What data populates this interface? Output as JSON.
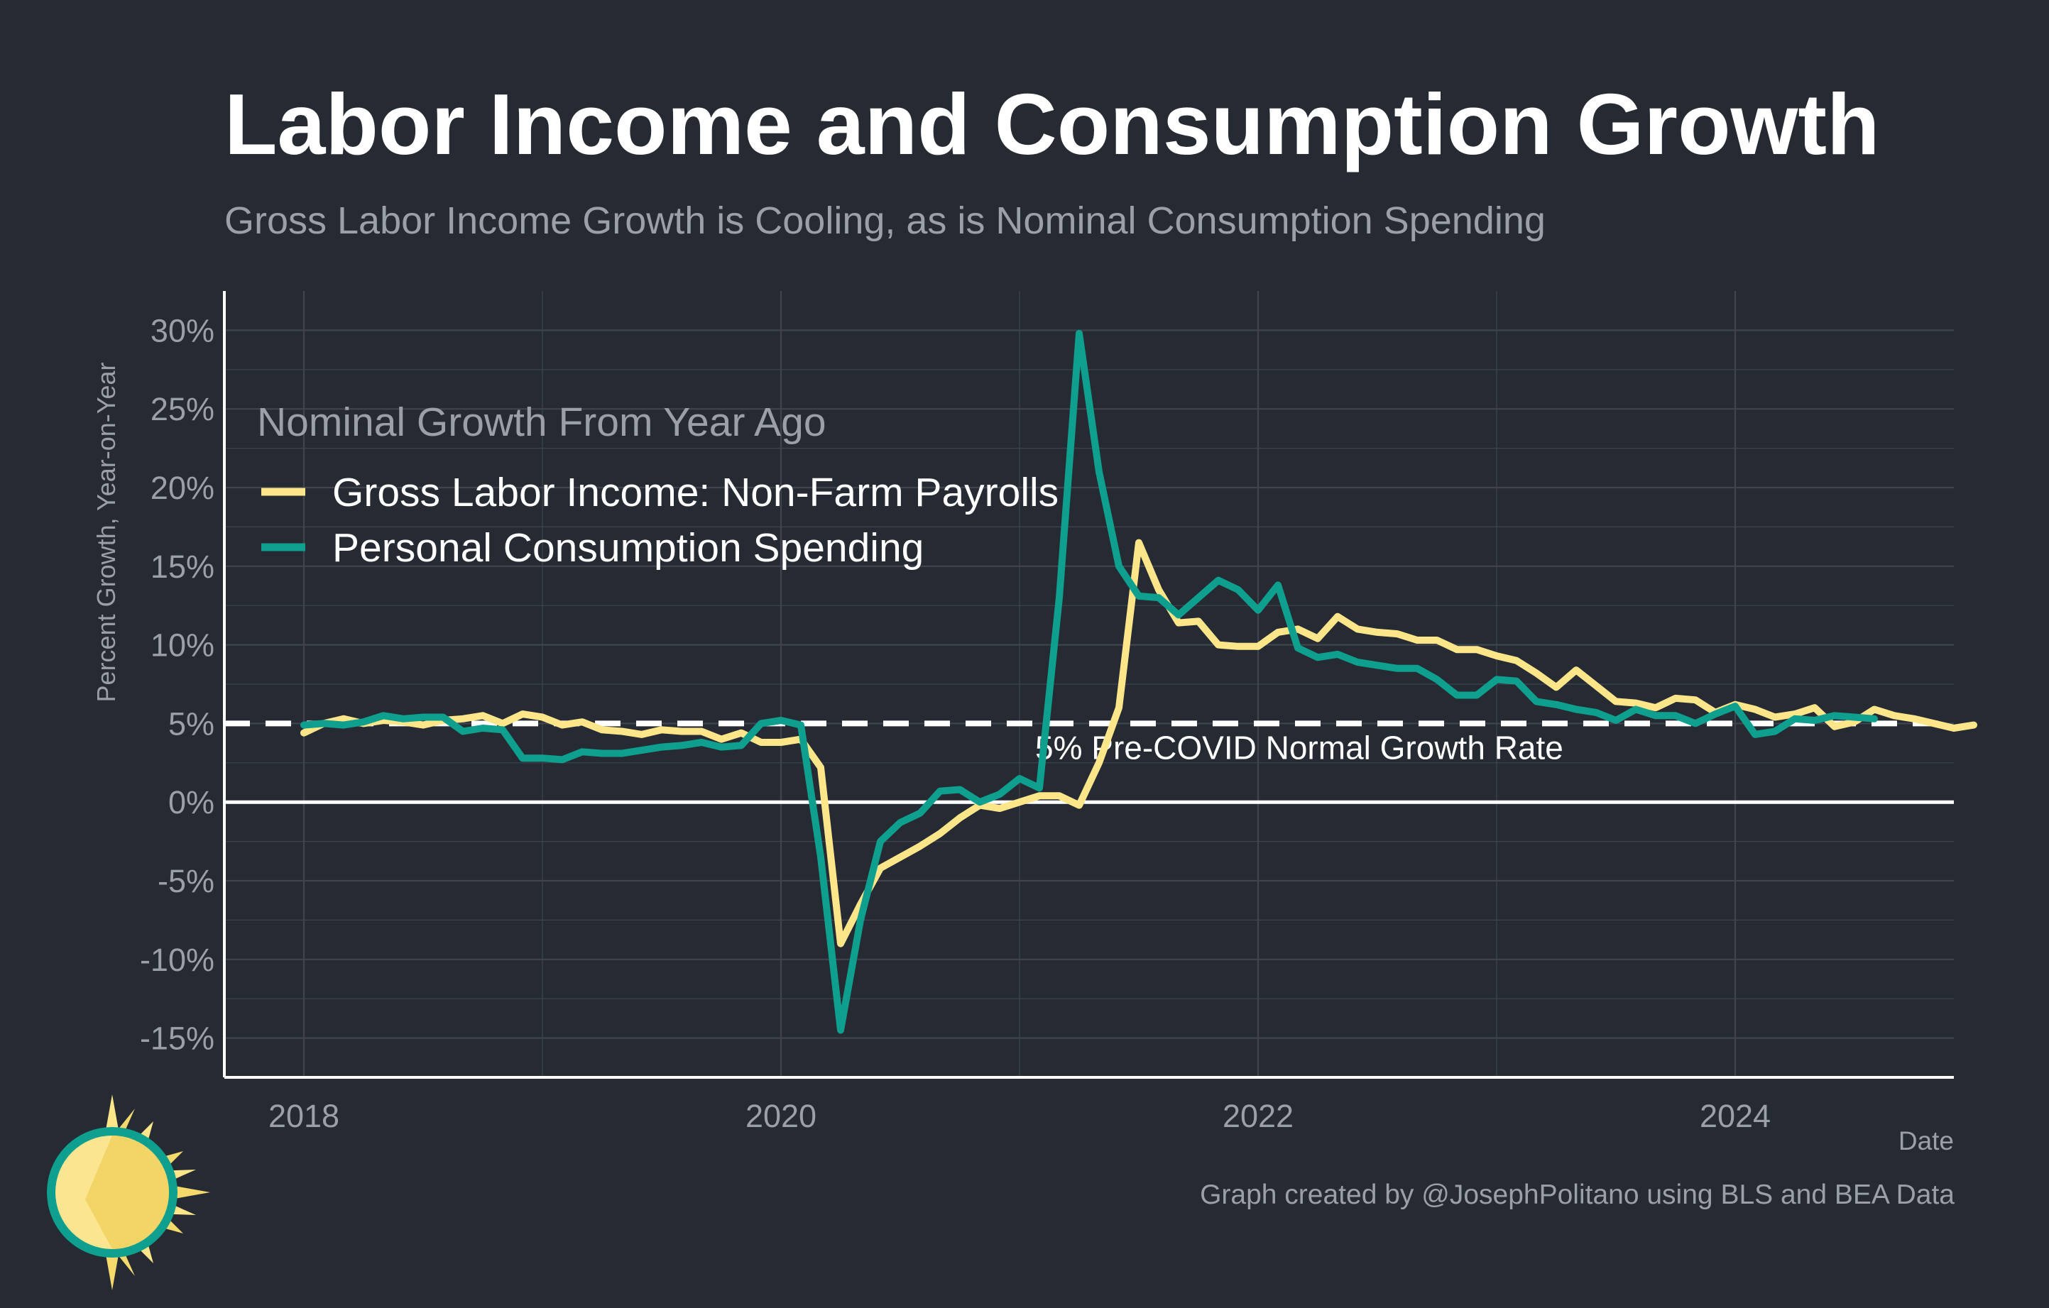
{
  "title": "Labor Income and Consumption Growth",
  "subtitle": "Gross Labor Income Growth is Cooling, as is Nominal Consumption Spending",
  "credit": "Graph created by @JosephPolitano using BLS and BEA Data",
  "colors": {
    "background": "#252a33",
    "grid": "#3f444e",
    "labor_income": "#fde68a",
    "consumption": "#0e9f8e",
    "reference": "#ffffff",
    "muted_text": "#9ba0a8"
  },
  "chart_data": {
    "type": "line",
    "title": "Labor Income and Consumption Growth",
    "subtitle": "Gross Labor Income Growth is Cooling, as is Nominal Consumption Spending",
    "xlabel": "Date",
    "ylabel": "Percent Growth, Year-on-Year",
    "xlim": [
      "2017-09",
      "2024-12"
    ],
    "ylim": [
      -17.5,
      32.5
    ],
    "x_ticks": [
      {
        "value": "2018-01",
        "label": "2018"
      },
      {
        "value": "2020-01",
        "label": "2020"
      },
      {
        "value": "2022-01",
        "label": "2022"
      },
      {
        "value": "2024-01",
        "label": "2024"
      }
    ],
    "y_ticks": [
      {
        "value": 30,
        "label": "30%"
      },
      {
        "value": 25,
        "label": "25%"
      },
      {
        "value": 20,
        "label": "20%"
      },
      {
        "value": 15,
        "label": "15%"
      },
      {
        "value": 10,
        "label": "10%"
      },
      {
        "value": 5,
        "label": "5%"
      },
      {
        "value": 0,
        "label": "0%"
      },
      {
        "value": -5,
        "label": "-5%"
      },
      {
        "value": -10,
        "label": "-10%"
      },
      {
        "value": -15,
        "label": "-15%"
      }
    ],
    "grid": true,
    "legend": {
      "title": "Nominal Growth From Year Ago",
      "position": "top-left"
    },
    "reference_line": {
      "value": 5,
      "label": "5% Pre-COVID Normal Growth Rate",
      "style": "dashed"
    },
    "zero_line": {
      "value": 0
    },
    "series": [
      {
        "name": "Gross Labor Income: Non-Farm Payrolls",
        "color": "#fde68a",
        "start": "2018-01",
        "values": [
          4.4,
          5.0,
          5.3,
          5.0,
          5.2,
          5.1,
          4.9,
          5.2,
          5.3,
          5.5,
          5.0,
          5.6,
          5.4,
          4.9,
          5.1,
          4.6,
          4.5,
          4.3,
          4.6,
          4.5,
          4.5,
          4.0,
          4.4,
          3.8,
          3.8,
          4.0,
          2.2,
          -9.0,
          -6.5,
          -4.2,
          -3.5,
          -2.8,
          -2.0,
          -1.0,
          -0.2,
          -0.4,
          0.0,
          0.4,
          0.4,
          -0.2,
          2.5,
          6.0,
          16.5,
          13.5,
          11.4,
          11.5,
          10.0,
          9.9,
          9.9,
          10.8,
          11.0,
          10.4,
          11.8,
          11.0,
          10.8,
          10.7,
          10.3,
          10.3,
          9.7,
          9.7,
          9.3,
          9.0,
          8.2,
          7.3,
          8.4,
          7.4,
          6.4,
          6.3,
          6.0,
          6.6,
          6.5,
          5.7,
          6.2,
          5.9,
          5.4,
          5.6,
          6.0,
          4.8,
          5.1,
          5.9,
          5.5,
          5.3,
          5.0,
          4.7,
          4.9
        ]
      },
      {
        "name": "Personal Consumption Spending",
        "color": "#0e9f8e",
        "start": "2018-01",
        "values": [
          4.9,
          5.0,
          4.9,
          5.1,
          5.5,
          5.3,
          5.4,
          5.4,
          4.5,
          4.7,
          4.6,
          2.8,
          2.8,
          2.7,
          3.2,
          3.1,
          3.1,
          3.3,
          3.5,
          3.6,
          3.8,
          3.5,
          3.6,
          5.0,
          5.2,
          4.9,
          -3.5,
          -14.5,
          -7.5,
          -2.5,
          -1.3,
          -0.7,
          0.7,
          0.8,
          0.0,
          0.5,
          1.5,
          0.9,
          13.0,
          29.8,
          21.0,
          15.0,
          13.1,
          13.0,
          11.9,
          13.0,
          14.1,
          13.5,
          12.2,
          13.8,
          9.8,
          9.2,
          9.4,
          8.9,
          8.7,
          8.5,
          8.5,
          7.8,
          6.8,
          6.8,
          7.8,
          7.7,
          6.4,
          6.2,
          5.9,
          5.7,
          5.2,
          5.9,
          5.5,
          5.5,
          5.0,
          5.6,
          6.1,
          4.3,
          4.5,
          5.3,
          5.2,
          5.5,
          5.4,
          5.3
        ]
      }
    ]
  }
}
